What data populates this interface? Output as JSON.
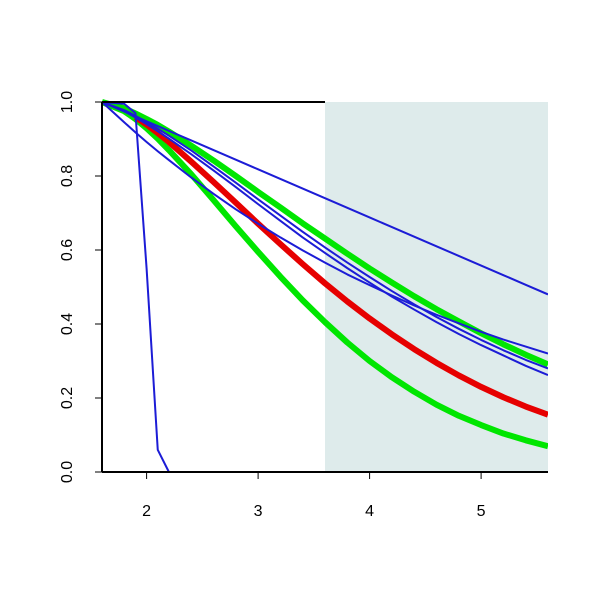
{
  "chart_data": {
    "type": "line",
    "x": [
      1.6,
      1.8,
      1.9,
      2.0,
      2.1,
      2.2,
      2.4,
      2.6,
      2.8,
      3.0,
      3.2,
      3.4,
      3.6,
      3.8,
      4.0,
      4.2,
      4.4,
      4.6,
      4.8,
      5.0,
      5.2,
      5.4,
      5.6
    ],
    "xlim": [
      1.6,
      5.6
    ],
    "xticks": [
      2,
      3,
      4,
      5
    ],
    "ylim": [
      0,
      1
    ],
    "yticks": [
      {
        "value": 0,
        "label": "0.0"
      },
      {
        "value": 0.2,
        "label": "0.2"
      },
      {
        "value": 0.4,
        "label": "0.4"
      },
      {
        "value": 0.6,
        "label": "0.6"
      },
      {
        "value": 0.8,
        "label": "0.8"
      },
      {
        "value": 1,
        "label": "1.0"
      }
    ],
    "shaded_xrange": [
      3.6,
      5.6
    ],
    "shade_color": "#deebeb",
    "series": [
      {
        "color": "#00e600",
        "linewidth": 6,
        "values": [
          1,
          0.975,
          0.954,
          0.929,
          0.901,
          0.87,
          0.805,
          0.735,
          0.664,
          0.595,
          0.528,
          0.464,
          0.405,
          0.35,
          0.3,
          0.256,
          0.217,
          0.182,
          0.152,
          0.127,
          0.104,
          0.0857,
          0.0698
        ]
      },
      {
        "color": "#e60000",
        "linewidth": 6,
        "values": [
          null,
          null,
          0.959,
          0.939,
          0.916,
          0.892,
          0.839,
          0.784,
          0.728,
          0.671,
          0.616,
          0.562,
          0.51,
          0.461,
          0.415,
          0.372,
          0.332,
          0.295,
          0.261,
          0.23,
          0.202,
          0.177,
          0.155
        ]
      },
      {
        "color": "#00e600",
        "linewidth": 6,
        "values": [
          1,
          0.983,
          0.969,
          0.954,
          0.938,
          0.92,
          0.882,
          0.842,
          0.8,
          0.757,
          0.715,
          0.672,
          0.631,
          0.59,
          0.55,
          0.512,
          0.475,
          0.44,
          0.407,
          0.375,
          0.345,
          0.317,
          0.291
        ]
      },
      {
        "color": "#1c1cd6",
        "linewidth": 2,
        "values": [
          1,
          0.974,
          0.961,
          0.948,
          0.935,
          0.922,
          0.896,
          0.87,
          0.844,
          0.818,
          0.792,
          0.766,
          0.74,
          0.714,
          0.688,
          0.662,
          0.636,
          0.61,
          0.584,
          0.558,
          0.532,
          0.506,
          0.48
        ]
      },
      {
        "color": "#1c1cd6",
        "linewidth": 2,
        "values": [
          1,
          0.945,
          0.918,
          0.892,
          0.867,
          0.843,
          0.796,
          0.752,
          0.71,
          0.671,
          0.634,
          0.599,
          0.566,
          0.534,
          0.505,
          0.477,
          0.45,
          0.425,
          0.402,
          0.379,
          0.358,
          0.339,
          0.32
        ]
      },
      {
        "color": "#1c1cd6",
        "linewidth": 2,
        "values": [
          1,
          0.978,
          0.963,
          0.946,
          0.928,
          0.909,
          0.869,
          0.826,
          0.782,
          0.737,
          0.693,
          0.649,
          0.607,
          0.566,
          0.527,
          0.489,
          0.453,
          0.419,
          0.387,
          0.357,
          0.329,
          0.303,
          0.28
        ]
      },
      {
        "color": "#1c1cd6",
        "linewidth": 2,
        "values": [
          1,
          0.975,
          0.958,
          0.94,
          0.921,
          0.901,
          0.859,
          0.815,
          0.77,
          0.724,
          0.679,
          0.634,
          0.592,
          0.551,
          0.512,
          0.474,
          0.439,
          0.405,
          0.373,
          0.343,
          0.315,
          0.287,
          0.262
        ]
      },
      {
        "color": "#1c1cd6",
        "linewidth": 2,
        "values": [
          1,
          0.995,
          0.97,
          0.55,
          0.06,
          0,
          0,
          0,
          0,
          0,
          0,
          0,
          0,
          0,
          0,
          0,
          0,
          0,
          0,
          0,
          0,
          0,
          0
        ]
      }
    ]
  }
}
